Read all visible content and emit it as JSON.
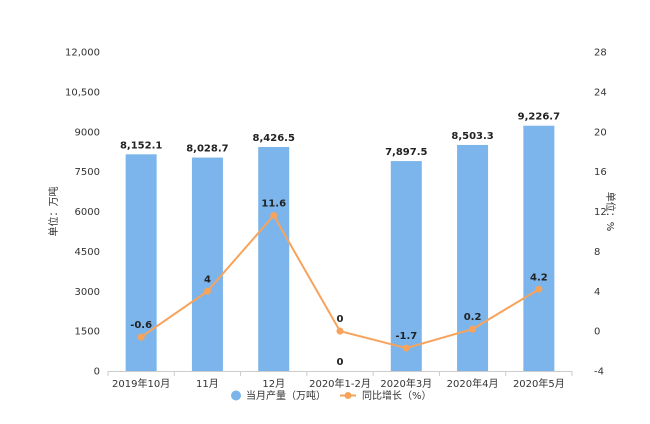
{
  "chart_data": {
    "type": "bar",
    "categories": [
      "2019年10月",
      "11月",
      "12月",
      "2020年1-2月",
      "2020年3月",
      "2020年4月",
      "2020年5月"
    ],
    "series": [
      {
        "name": "当月产量（万吨）",
        "type": "bar",
        "axis": "left",
        "color": "#7cb5ec",
        "values": [
          8152.1,
          8028.7,
          8426.5,
          0,
          7897.5,
          8503.3,
          9226.7
        ],
        "labels": [
          "8,152.1",
          "8,028.7",
          "8,426.5",
          "0",
          "7,897.5",
          "8,503.3",
          "9,226.7"
        ]
      },
      {
        "name": "同比增长（%）",
        "type": "line",
        "axis": "right",
        "color": "#f7a35c",
        "values": [
          -0.6,
          4,
          11.6,
          0,
          -1.7,
          0.2,
          4.2
        ],
        "labels": [
          "-0.6",
          "4",
          "11.6",
          "0",
          "-1.7",
          "0.2",
          "4.2"
        ]
      }
    ],
    "y_left": {
      "label": "单位：万吨",
      "ylim": [
        0,
        12000
      ],
      "ticks": [
        0,
        1500,
        3000,
        4500,
        6000,
        7500,
        9000,
        10500,
        12000
      ],
      "tick_labels": [
        "0",
        "1500",
        "3000",
        "4500",
        "6000",
        "7500",
        "9000",
        "10,500",
        "12,000"
      ]
    },
    "y_right": {
      "label": "单位：%",
      "ylim": [
        -4,
        28
      ],
      "ticks": [
        -4,
        0,
        4,
        8,
        12,
        16,
        20,
        24,
        28
      ],
      "tick_labels": [
        "-4",
        "0",
        "4",
        "8",
        "12",
        "16",
        "20",
        "24",
        "28"
      ]
    },
    "grid": false,
    "legend_position": "bottom-center"
  }
}
